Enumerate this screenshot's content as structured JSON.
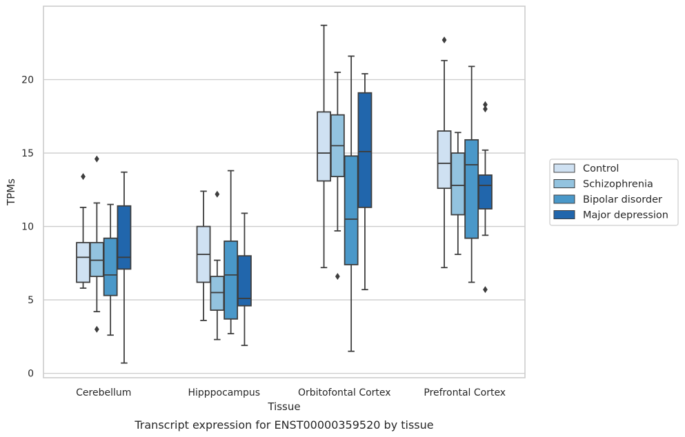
{
  "chart_data": {
    "type": "boxplot",
    "xlabel": "Tissue",
    "ylabel": "TPMs",
    "caption": "Transcript expression for ENST00000359520 by tissue",
    "ylim": [
      -0.3,
      25
    ],
    "yticks": [
      0,
      5,
      10,
      15,
      20
    ],
    "grid": "horizontal",
    "legend_position": "right",
    "categories": [
      "Cerebellum",
      "Hipppocampus",
      "Orbitofontal Cortex",
      "Prefrontal Cortex"
    ],
    "series": [
      {
        "name": "Control",
        "color": "#cfe1f2",
        "boxes": [
          {
            "whislo": 5.8,
            "q1": 6.2,
            "med": 7.9,
            "q3": 8.9,
            "whishi": 11.3,
            "fliers": [
              13.4
            ]
          },
          {
            "whislo": 3.6,
            "q1": 6.2,
            "med": 8.1,
            "q3": 10.0,
            "whishi": 12.4,
            "fliers": []
          },
          {
            "whislo": 7.2,
            "q1": 13.1,
            "med": 15.0,
            "q3": 17.8,
            "whishi": 23.7,
            "fliers": []
          },
          {
            "whislo": 7.2,
            "q1": 12.6,
            "med": 14.3,
            "q3": 16.5,
            "whishi": 21.3,
            "fliers": [
              22.7
            ]
          }
        ]
      },
      {
        "name": "Schizophrenia",
        "color": "#93c3df",
        "boxes": [
          {
            "whislo": 4.2,
            "q1": 6.6,
            "med": 7.7,
            "q3": 8.9,
            "whishi": 11.6,
            "fliers": [
              3.0,
              14.6
            ]
          },
          {
            "whislo": 2.3,
            "q1": 4.3,
            "med": 5.5,
            "q3": 6.6,
            "whishi": 7.7,
            "fliers": [
              12.2
            ]
          },
          {
            "whislo": 9.7,
            "q1": 13.4,
            "med": 15.5,
            "q3": 17.6,
            "whishi": 20.5,
            "fliers": [
              6.6
            ]
          },
          {
            "whislo": 8.1,
            "q1": 10.8,
            "med": 12.8,
            "q3": 15.0,
            "whishi": 16.4,
            "fliers": []
          }
        ]
      },
      {
        "name": "Bipolar disorder",
        "color": "#4a98c9",
        "boxes": [
          {
            "whislo": 2.6,
            "q1": 5.3,
            "med": 6.7,
            "q3": 9.2,
            "whishi": 11.5,
            "fliers": []
          },
          {
            "whislo": 2.7,
            "q1": 3.7,
            "med": 6.7,
            "q3": 9.0,
            "whishi": 13.8,
            "fliers": []
          },
          {
            "whislo": 1.5,
            "q1": 7.4,
            "med": 10.5,
            "q3": 14.8,
            "whishi": 21.6,
            "fliers": []
          },
          {
            "whislo": 6.2,
            "q1": 9.2,
            "med": 14.2,
            "q3": 15.9,
            "whishi": 20.9,
            "fliers": []
          }
        ]
      },
      {
        "name": "Major depression",
        "color": "#2166ac",
        "boxes": [
          {
            "whislo": 0.7,
            "q1": 7.1,
            "med": 7.9,
            "q3": 11.4,
            "whishi": 13.7,
            "fliers": []
          },
          {
            "whislo": 1.9,
            "q1": 4.6,
            "med": 5.1,
            "q3": 8.0,
            "whishi": 10.9,
            "fliers": []
          },
          {
            "whislo": 5.7,
            "q1": 11.3,
            "med": 15.1,
            "q3": 19.1,
            "whishi": 20.4,
            "fliers": []
          },
          {
            "whislo": 9.4,
            "q1": 11.2,
            "med": 12.8,
            "q3": 13.5,
            "whishi": 15.2,
            "fliers": [
              5.7,
              18.0,
              18.3
            ]
          }
        ]
      }
    ]
  }
}
